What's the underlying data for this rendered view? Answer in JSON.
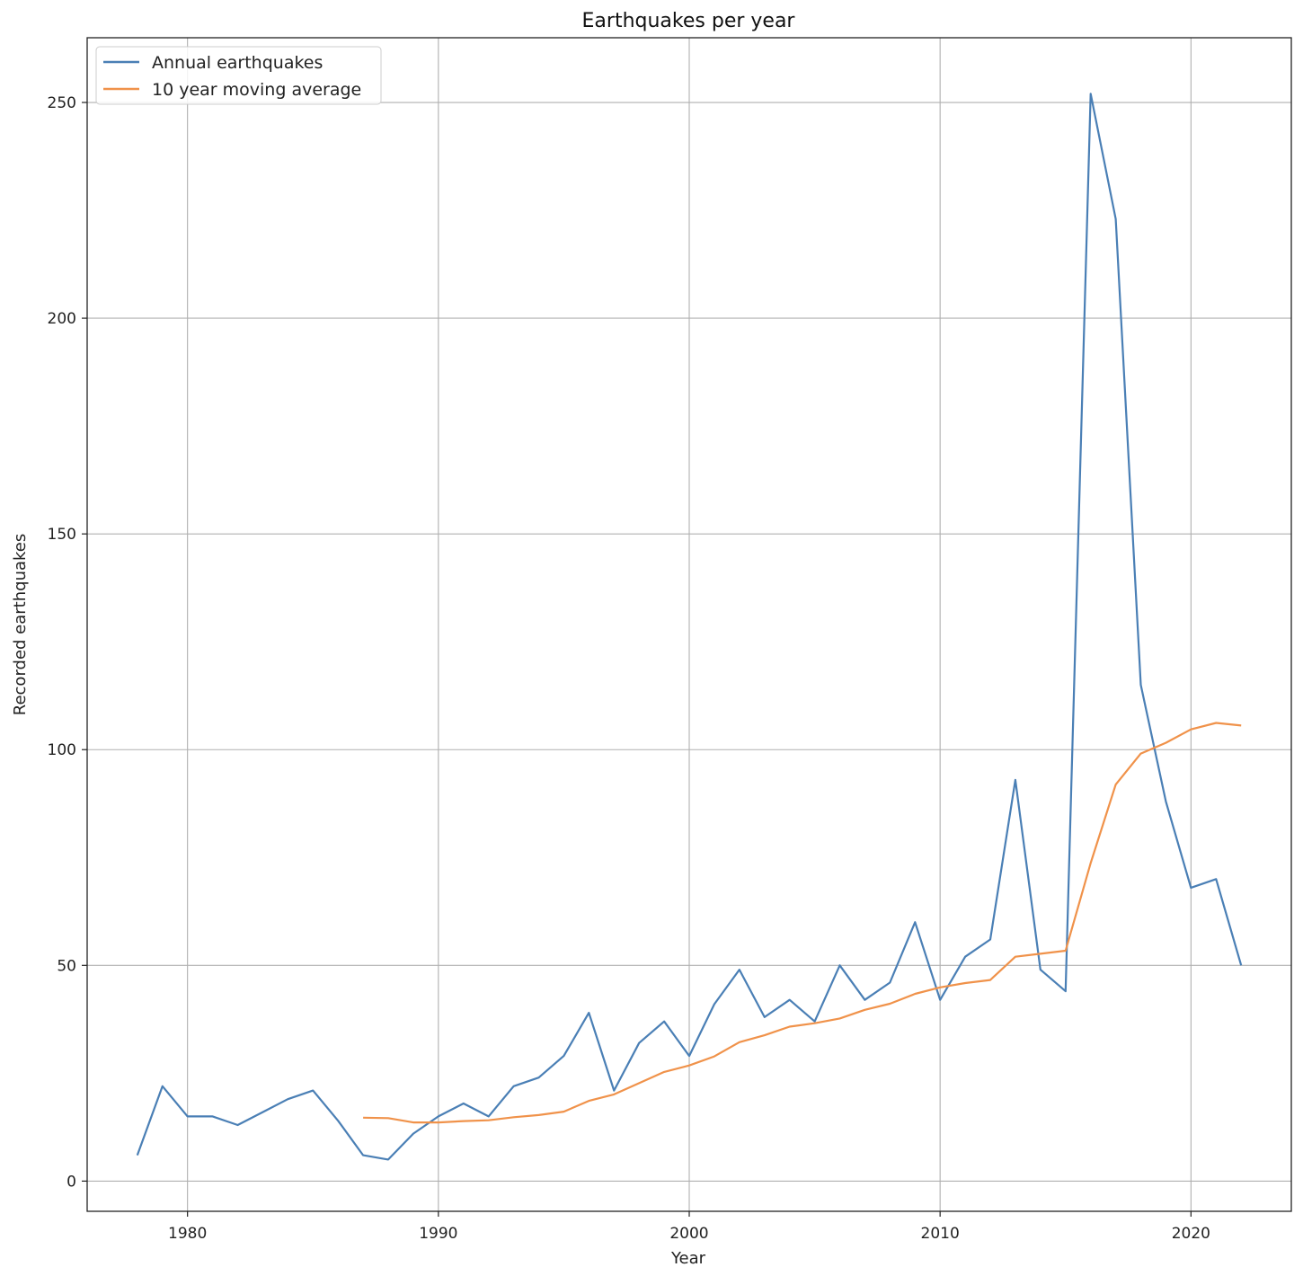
{
  "chart_data": {
    "type": "line",
    "title": "Earthquakes per year",
    "xlabel": "Year",
    "ylabel": "Recorded earthquakes",
    "xlim": [
      1976,
      2024
    ],
    "ylim": [
      -7,
      265
    ],
    "xticks": [
      1980,
      1990,
      2000,
      2010,
      2020
    ],
    "yticks": [
      0,
      50,
      100,
      150,
      200,
      250
    ],
    "grid": true,
    "legend_position": "top-left",
    "series": [
      {
        "name": "Annual earthquakes",
        "color": "#4a7fb5",
        "x": [
          1978,
          1979,
          1980,
          1981,
          1982,
          1983,
          1984,
          1985,
          1986,
          1987,
          1988,
          1989,
          1990,
          1991,
          1992,
          1993,
          1994,
          1995,
          1996,
          1997,
          1998,
          1999,
          2000,
          2001,
          2002,
          2003,
          2004,
          2005,
          2006,
          2007,
          2008,
          2009,
          2010,
          2011,
          2012,
          2013,
          2014,
          2015,
          2016,
          2017,
          2018,
          2019,
          2020,
          2021,
          2022
        ],
        "y": [
          6,
          22,
          15,
          15,
          13,
          16,
          19,
          21,
          14,
          6,
          5,
          11,
          15,
          18,
          15,
          22,
          24,
          29,
          39,
          21,
          32,
          37,
          29,
          41,
          49,
          38,
          42,
          37,
          50,
          42,
          46,
          60,
          42,
          52,
          56,
          93,
          49,
          44,
          252,
          223,
          115,
          88,
          68,
          70,
          50
        ]
      },
      {
        "name": "10 year moving average",
        "color": "#f0924a",
        "x": [
          1987,
          1988,
          1989,
          1990,
          1991,
          1992,
          1993,
          1994,
          1995,
          1996,
          1997,
          1998,
          1999,
          2000,
          2001,
          2002,
          2003,
          2004,
          2005,
          2006,
          2007,
          2008,
          2009,
          2010,
          2011,
          2012,
          2013,
          2014,
          2015,
          2016,
          2017,
          2018,
          2019,
          2020,
          2021,
          2022
        ],
        "y": [
          14.7,
          14.6,
          13.6,
          13.6,
          13.9,
          14.1,
          14.8,
          15.3,
          16.1,
          18.6,
          20.1,
          22.7,
          25.3,
          26.8,
          28.9,
          32.2,
          33.8,
          35.8,
          36.6,
          37.7,
          39.7,
          41.1,
          43.4,
          44.9,
          45.9,
          46.6,
          52.0,
          52.7,
          53.4,
          73.7,
          91.9,
          99.1,
          101.6,
          104.7,
          106.2,
          105.6
        ]
      }
    ]
  }
}
